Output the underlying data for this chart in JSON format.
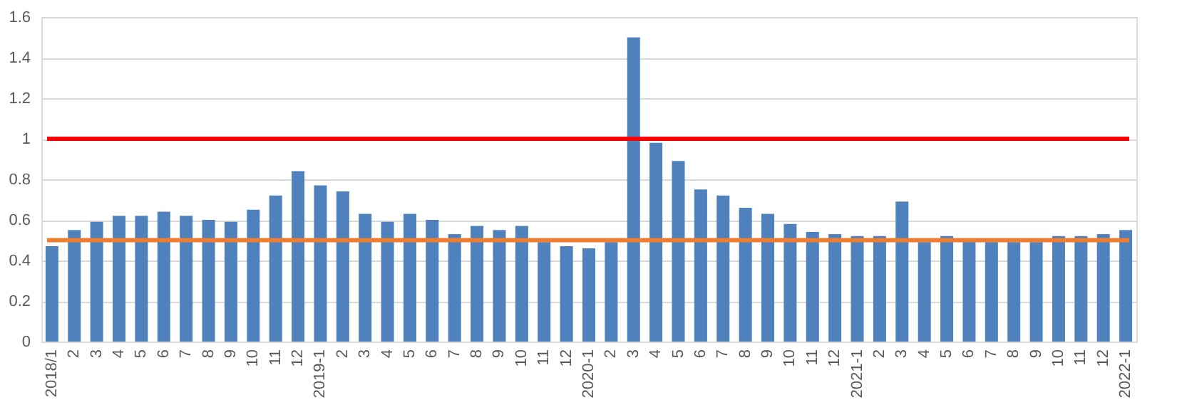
{
  "chart_data": {
    "type": "bar",
    "categories": [
      "2018/1",
      "2",
      "3",
      "4",
      "5",
      "6",
      "7",
      "8",
      "9",
      "10",
      "11",
      "12",
      "2019-1",
      "2",
      "3",
      "4",
      "5",
      "6",
      "7",
      "8",
      "9",
      "10",
      "11",
      "12",
      "2020-1",
      "2",
      "3",
      "4",
      "5",
      "6",
      "7",
      "8",
      "9",
      "10",
      "11",
      "12",
      "2021-1",
      "2",
      "3",
      "4",
      "5",
      "6",
      "7",
      "8",
      "9",
      "10",
      "11",
      "12",
      "2022-1"
    ],
    "series": [
      {
        "color": "#4f81bd",
        "values": [
          0.47,
          0.55,
          0.59,
          0.62,
          0.62,
          0.64,
          0.62,
          0.6,
          0.59,
          0.65,
          0.72,
          0.84,
          0.77,
          0.74,
          0.63,
          0.59,
          0.63,
          0.6,
          0.53,
          0.57,
          0.55,
          0.57,
          0.49,
          0.47,
          0.46,
          0.49,
          1.5,
          0.98,
          0.89,
          0.75,
          0.72,
          0.66,
          0.63,
          0.58,
          0.54,
          0.53,
          0.52,
          0.52,
          0.69,
          0.49,
          0.52,
          0.5,
          0.49,
          0.49,
          0.49,
          0.52,
          0.52,
          0.53,
          0.55
        ]
      }
    ],
    "ylim": [
      0,
      1.6
    ],
    "yticks": [
      0,
      0.2,
      0.4,
      0.6,
      0.8,
      1,
      1.2,
      1.4,
      1.6
    ],
    "grid": "y",
    "legend": false,
    "ref_lines": [
      {
        "axis": "y",
        "value": 1,
        "color": "#ff0000",
        "line_style": "solid"
      },
      {
        "axis": "y",
        "value": 0.5,
        "color": "#ed7d31",
        "line_style": "solid"
      }
    ]
  }
}
